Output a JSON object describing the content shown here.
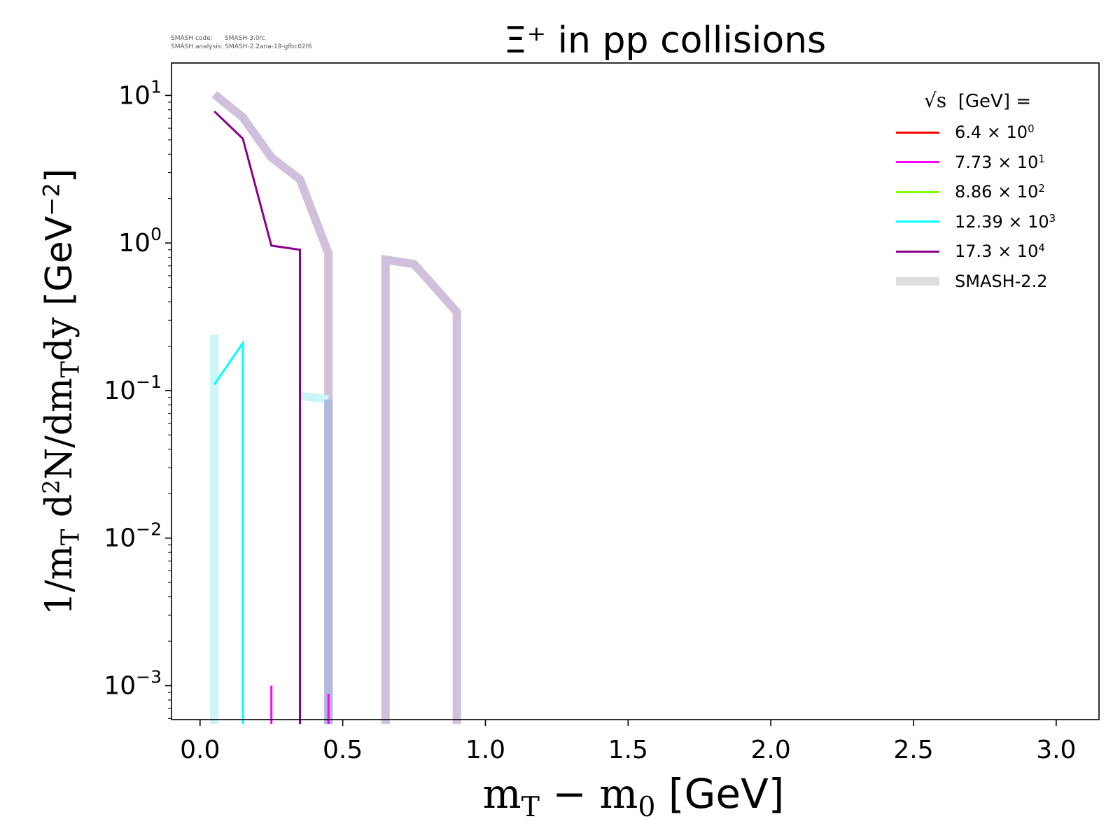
{
  "meta": {
    "code_label": "SMASH code:      SMASH-3.0rc",
    "analysis_label": "SMASH analysis: SMASH-2.2ana-19-gfbc02f6"
  },
  "chart_data": {
    "type": "line",
    "title": "Ξ⁺ in pp collisions",
    "xlabel": "m_T − m_0 [GeV]",
    "ylabel": "1/m_T d²N/dm_Tdy [GeV⁻²]",
    "xlim": [
      -0.1,
      3.15
    ],
    "ylim_log10": [
      -3.23,
      1.22
    ],
    "yscale": "log",
    "x_ticks": [
      0.0,
      0.5,
      1.0,
      1.5,
      2.0,
      2.5,
      3.0
    ],
    "x_tick_labels": [
      "0.0",
      "0.5",
      "1.0",
      "1.5",
      "2.0",
      "2.5",
      "3.0"
    ],
    "y_tick_exponents": [
      -3,
      -2,
      -1,
      0,
      1
    ],
    "grid": false,
    "legend_placement": "top-right",
    "legend_title": "[GeV] =",
    "legend_title_symbol": "√s",
    "y_floor": 0.00055,
    "series": [
      {
        "name_mantissa": "6.4",
        "name_exp": "0",
        "color": "#ff0000",
        "width": 3,
        "x": [],
        "y": []
      },
      {
        "name_mantissa": "7.73",
        "name_exp": "1",
        "color": "#ff00ff",
        "width": 3,
        "segments": [
          {
            "x": [
              0.25,
              0.25
            ],
            "y": [
              0.00055,
              0.001
            ]
          },
          {
            "x": [
              0.45,
              0.45
            ],
            "y": [
              0.00055,
              0.00088
            ]
          }
        ]
      },
      {
        "name_mantissa": "8.86",
        "name_exp": "2",
        "color": "#7fff00",
        "width": 3,
        "x": [],
        "y": []
      },
      {
        "name_mantissa": "12.39",
        "name_exp": "3",
        "color": "#00ffff",
        "width": 3,
        "x": [
          0.05,
          0.15,
          0.15
        ],
        "y": [
          0.11,
          0.21,
          0.00055
        ]
      },
      {
        "name_mantissa": "17.3",
        "name_exp": "4",
        "color": "#8b008b",
        "width": 3,
        "x": [
          0.05,
          0.15,
          0.25,
          0.35,
          0.35
        ],
        "y": [
          7.8,
          5.1,
          0.96,
          0.9,
          0.00055
        ]
      },
      {
        "name": "SMASH-2.2",
        "color": "#dddddd",
        "width": 12,
        "legend_only": true
      }
    ],
    "reference_series": [
      {
        "color": "#d0c0dc",
        "width": 12,
        "x": [
          0.05,
          0.15,
          0.25,
          0.35,
          0.45,
          0.45
        ],
        "y": [
          10.2,
          7.1,
          3.8,
          2.7,
          0.85,
          0.00055
        ]
      },
      {
        "color": "#d0c0dc",
        "width": 12,
        "x": [
          0.65,
          0.65,
          0.75,
          0.9,
          0.9
        ],
        "y": [
          0.00055,
          0.77,
          0.72,
          0.34,
          0.00055
        ]
      },
      {
        "color": "#ccf6f6",
        "width": 12,
        "x": [
          0.05,
          0.05
        ],
        "y": [
          0.24,
          0.00055
        ]
      },
      {
        "color": "#ccf6f6",
        "width": 12,
        "x": [
          0.35,
          0.45
        ],
        "y": [
          0.092,
          0.087
        ]
      },
      {
        "color": "#b0b8dc",
        "width": 12,
        "x": [
          0.45,
          0.45
        ],
        "y": [
          0.087,
          0.00055
        ]
      }
    ]
  }
}
